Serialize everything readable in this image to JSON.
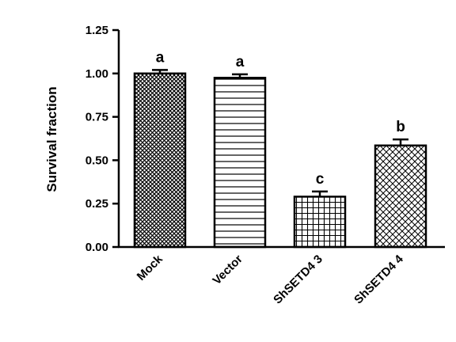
{
  "chart_data": {
    "type": "bar",
    "title": "",
    "xlabel": "",
    "ylabel": "Survival fraction",
    "ylim": [
      0,
      1.25
    ],
    "yticks": [
      "0.00",
      "0.25",
      "0.50",
      "0.75",
      "1.00",
      "1.25"
    ],
    "categories": [
      "Mock",
      "Vector",
      "ShSETD4 3",
      "ShSETD4 4"
    ],
    "values": [
      1.0,
      0.975,
      0.29,
      0.585
    ],
    "errors": [
      0.02,
      0.02,
      0.03,
      0.035
    ],
    "significance": [
      "a",
      "a",
      "c",
      "b"
    ],
    "patterns": [
      "crosshatch-dense",
      "horizontal-lines",
      "grid",
      "diagonal-crosshatch"
    ],
    "colors": {
      "bar_stroke": "#000000",
      "pattern": "#000000",
      "fill": "#ffffff"
    }
  }
}
